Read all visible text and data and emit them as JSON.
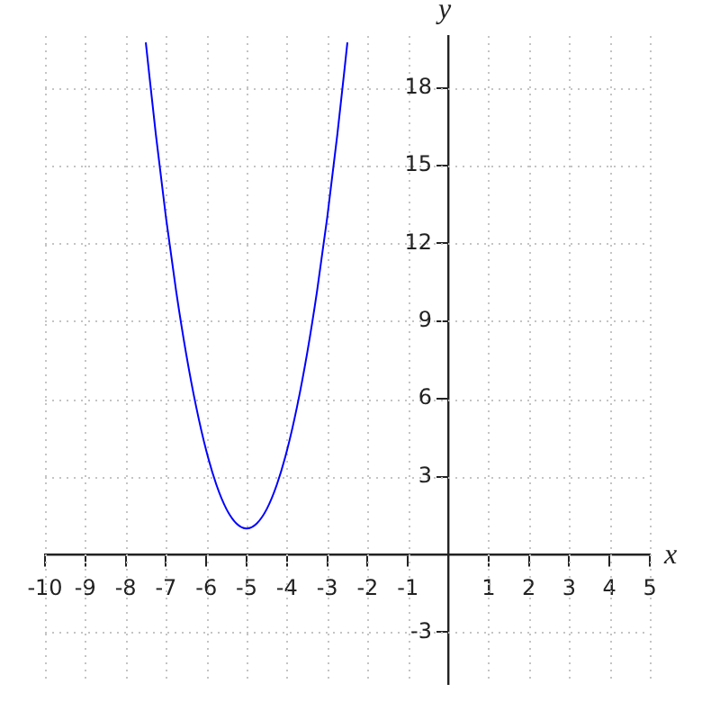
{
  "chart_data": {
    "type": "line",
    "xlabel": "x",
    "ylabel": "y",
    "xlim": [
      -10,
      5
    ],
    "xticks": [
      -10,
      -9,
      -8,
      -7,
      -6,
      -5,
      -4,
      -3,
      -2,
      -1,
      1,
      2,
      3,
      4,
      5
    ],
    "ylim": [
      -5,
      20
    ],
    "yticks": [
      -3,
      3,
      6,
      9,
      12,
      15,
      18
    ],
    "grid": true,
    "legend": false,
    "marker": "none",
    "line_style": "solid",
    "series": [
      {
        "color": "#0000ff",
        "x": [
          -7.5,
          -7.25,
          -7,
          -6.75,
          -6.5,
          -6.25,
          -6,
          -5.75,
          -5.5,
          -5.25,
          -5,
          -4.75,
          -4.5,
          -4.25,
          -4,
          -3.75,
          -3.5,
          -3.25,
          -3,
          -2.75,
          -2.5
        ],
        "values": [
          19.75,
          16.19,
          13,
          10.19,
          7.75,
          5.69,
          4,
          2.69,
          1.75,
          1.19,
          1,
          1.19,
          1.75,
          2.69,
          4,
          5.69,
          7.75,
          10.19,
          13,
          16.19,
          19.75
        ]
      }
    ]
  }
}
